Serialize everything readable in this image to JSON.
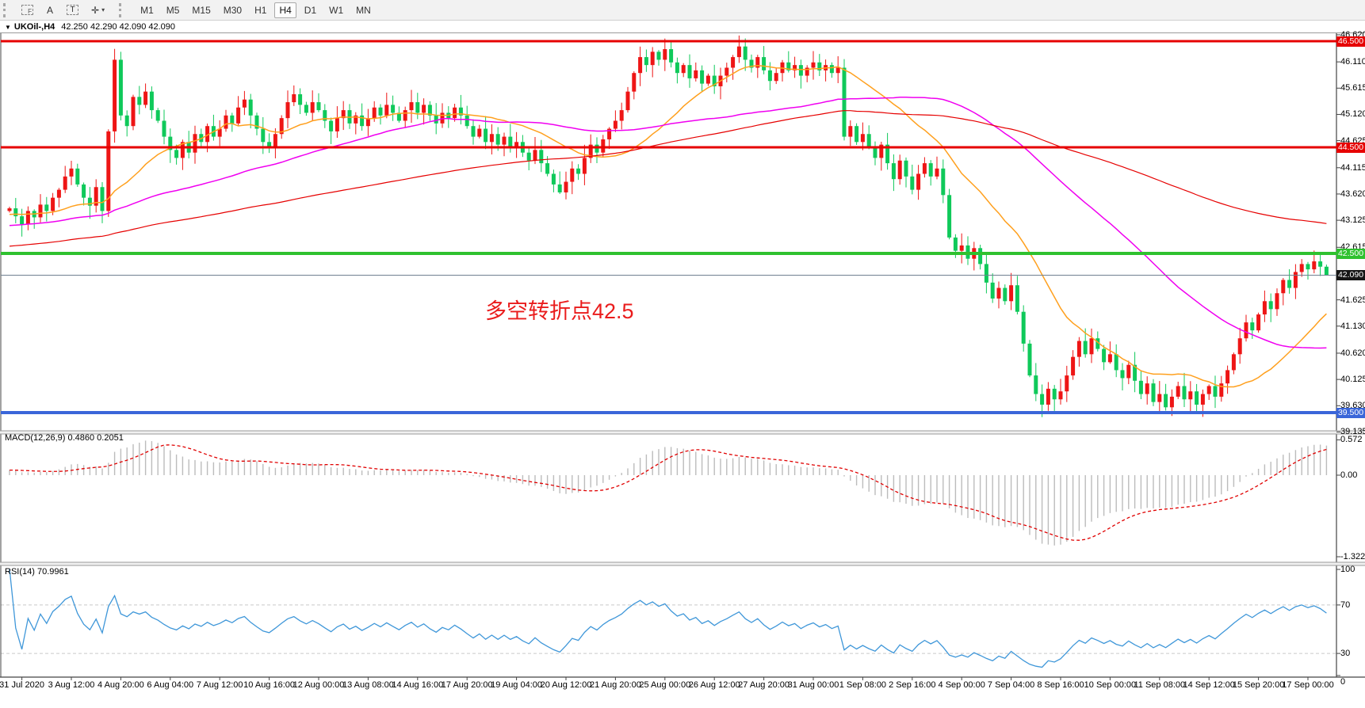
{
  "icons": {
    "title_caret": "▼",
    "dropdown_caret": "▾",
    "drawing_tool_glyph": "✛"
  },
  "toolbar": {
    "tools": [
      {
        "name": "pointer-tool",
        "label": "F"
      },
      {
        "name": "text-label-tool",
        "label": "A"
      },
      {
        "name": "text-box-tool",
        "label": "T"
      },
      {
        "name": "drawing-tool",
        "label": "✛"
      }
    ],
    "timeframes": [
      "M1",
      "M5",
      "M15",
      "M30",
      "H1",
      "H4",
      "D1",
      "W1",
      "MN"
    ],
    "active_timeframe": "H4"
  },
  "chart": {
    "symbol": "UKOil-,H4",
    "ohlc": "42.250 42.290 42.090 42.090",
    "annotation": "多空转折点42.5",
    "y_ticks": [
      "46.620",
      "46.110",
      "45.615",
      "45.120",
      "44.625",
      "44.115",
      "43.620",
      "43.125",
      "42.615",
      "41.625",
      "41.130",
      "40.620",
      "40.125",
      "39.630",
      "39.135"
    ],
    "levels": [
      {
        "text": "46.500",
        "color": "#e60000",
        "width": 3
      },
      {
        "text": "44.500",
        "color": "#e60000",
        "width": 3
      },
      {
        "text": "42.500",
        "color": "#2fc12f",
        "width": 4
      },
      {
        "text": "39.500",
        "color": "#3a66d9",
        "width": 4
      }
    ],
    "current_price": {
      "text": "42.090",
      "badge": "#151515",
      "line": "#708090"
    },
    "x_labels": [
      "31 Jul 2020",
      "3 Aug 12:00",
      "4 Aug 20:00",
      "6 Aug 04:00",
      "7 Aug 12:00",
      "10 Aug 16:00",
      "12 Aug 00:00",
      "13 Aug 08:00",
      "14 Aug 16:00",
      "17 Aug 20:00",
      "19 Aug 04:00",
      "20 Aug 12:00",
      "21 Aug 20:00",
      "25 Aug 00:00",
      "26 Aug 12:00",
      "27 Aug 20:00",
      "31 Aug 00:00",
      "1 Sep 08:00",
      "2 Sep 16:00",
      "4 Sep 00:00",
      "7 Sep 04:00",
      "8 Sep 16:00",
      "10 Sep 00:00",
      "11 Sep 08:00",
      "14 Sep 12:00",
      "15 Sep 20:00",
      "17 Sep 00:00"
    ]
  },
  "chart_data": {
    "type": "candlestick+indicators",
    "title": "UKOil- H4",
    "closes": [
      43.35,
      43.2,
      43.05,
      43.3,
      43.18,
      43.42,
      43.3,
      43.55,
      43.7,
      43.95,
      44.1,
      43.8,
      43.55,
      43.4,
      43.75,
      43.3,
      44.8,
      46.15,
      45.1,
      44.9,
      45.45,
      45.3,
      45.55,
      45.2,
      45.0,
      44.7,
      44.45,
      44.3,
      44.6,
      44.4,
      44.75,
      44.6,
      44.9,
      44.7,
      44.85,
      45.1,
      44.95,
      45.25,
      45.4,
      45.1,
      44.85,
      44.6,
      44.5,
      44.75,
      45.05,
      45.35,
      45.5,
      45.3,
      45.15,
      45.35,
      45.2,
      45.0,
      44.8,
      45.05,
      45.2,
      44.95,
      45.1,
      44.9,
      45.05,
      45.25,
      45.1,
      45.3,
      45.15,
      45.0,
      45.2,
      45.35,
      45.15,
      45.3,
      45.1,
      44.95,
      45.15,
      45.05,
      45.25,
      45.1,
      44.9,
      44.7,
      44.85,
      44.6,
      44.75,
      44.55,
      44.7,
      44.5,
      44.6,
      44.4,
      44.25,
      44.45,
      44.2,
      44.0,
      43.8,
      43.65,
      43.85,
      44.1,
      44.0,
      44.3,
      44.55,
      44.4,
      44.65,
      44.85,
      45.0,
      45.2,
      45.55,
      45.9,
      46.2,
      46.05,
      46.3,
      46.15,
      46.35,
      46.1,
      45.9,
      46.05,
      45.8,
      45.95,
      45.7,
      45.85,
      45.65,
      45.85,
      46.0,
      46.2,
      46.4,
      46.15,
      46.0,
      46.2,
      45.95,
      45.75,
      45.9,
      46.1,
      45.95,
      46.05,
      45.85,
      46.0,
      46.1,
      45.95,
      46.05,
      45.9,
      46.0,
      44.7,
      44.9,
      44.6,
      44.75,
      44.5,
      44.3,
      44.55,
      44.2,
      43.9,
      44.25,
      43.95,
      43.7,
      44.0,
      44.2,
      43.95,
      44.1,
      43.6,
      42.8,
      42.55,
      42.65,
      42.4,
      42.6,
      42.3,
      41.95,
      41.65,
      41.85,
      41.6,
      41.9,
      41.4,
      40.8,
      40.2,
      39.85,
      39.65,
      39.95,
      39.75,
      39.9,
      40.2,
      40.55,
      40.85,
      40.6,
      40.9,
      40.7,
      40.45,
      40.6,
      40.3,
      40.15,
      40.4,
      40.1,
      39.85,
      40.05,
      39.7,
      39.85,
      39.6,
      39.8,
      40.0,
      39.75,
      39.9,
      39.65,
      39.85,
      40.0,
      39.8,
      40.05,
      40.3,
      40.6,
      40.9,
      41.2,
      41.05,
      41.35,
      41.6,
      41.45,
      41.75,
      42.0,
      41.85,
      42.15,
      42.3,
      42.2,
      42.35,
      42.25,
      42.09
    ],
    "ylim": [
      39.135,
      46.62
    ],
    "grid": "off",
    "horizontal_lines": [
      46.5,
      44.5,
      42.5,
      39.5
    ],
    "last_bar_ohlc": [
      42.25,
      42.29,
      42.09,
      42.09
    ]
  },
  "macd": {
    "label": "MACD(12,26,9) 0.4860 0.2051",
    "main_value": "0.4860",
    "signal_value": "0.2051",
    "ticks": [
      "0.572",
      "0.00",
      "-1.3221"
    ]
  },
  "rsi": {
    "label": "RSI(14) 70.9961",
    "value": "70.9961",
    "ticks": [
      "100",
      "70",
      "30",
      "0"
    ],
    "levels": [
      70,
      30
    ]
  },
  "colors": {
    "candle_up": "#ee1515",
    "candle_down": "#0fc95a",
    "line_red": "#e60000",
    "line_green": "#2fc12f",
    "line_blue": "#3a66d9",
    "current_line": "#708090",
    "ma_orange": "#ffa01e",
    "ma_magenta": "#f000f0",
    "ma_red": "#e60000",
    "macd_histogram": "#bcbcbc",
    "macd_signal": "#e00000",
    "rsi_line": "#3f97d9",
    "rsi_level": "#c9c9c9",
    "axis": "#444444"
  }
}
